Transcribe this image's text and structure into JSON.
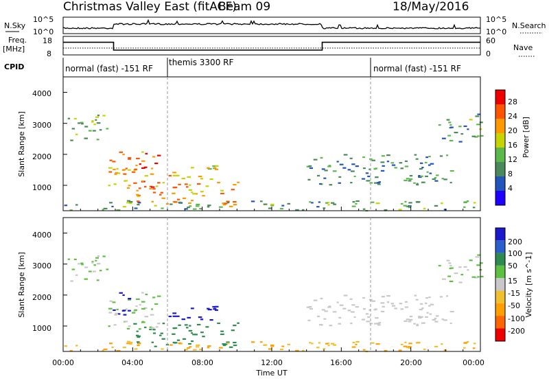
{
  "header": {
    "radar_title": "Christmas Valley East (fitACF)",
    "beam": "Beam 09",
    "date": "18/May/2016"
  },
  "nsky_panel": {
    "left_label": "N.Sky",
    "left_ticks": [
      "10^5",
      "10^0"
    ],
    "right_ticks": [
      "10^5",
      "10^0"
    ],
    "right_label": "N.Search"
  },
  "freq_panel": {
    "left_label_top": "Freq.",
    "left_label_bottom": "[MHz]",
    "left_ticks": [
      "18",
      "8"
    ],
    "right_ticks": [
      "60",
      "0"
    ],
    "right_label": "Nave"
  },
  "cpid": {
    "label": "CPID",
    "modes": [
      {
        "name": "normal (fast) -151 RF",
        "start_h": 0,
        "end_h": 6
      },
      {
        "name": "themis 3300 RF",
        "start_h": 6,
        "end_h": 18
      },
      {
        "name": "normal (fast) -151 RF",
        "start_h": 18,
        "end_h": 24
      }
    ]
  },
  "time_axis": {
    "label": "Time UT",
    "ticks": [
      "00:00",
      "04:00",
      "08:00",
      "12:00",
      "16:00",
      "20:00",
      "00:00"
    ]
  },
  "power_panel": {
    "ylabel": "Slant Range [km]",
    "yticks": [
      "4000",
      "3000",
      "2000",
      "1000"
    ],
    "colorbar_label": "Power [dB]",
    "colorbar_ticks": [
      "28",
      "24",
      "20",
      "16",
      "12",
      "8",
      "4"
    ],
    "colors": [
      "#1e00ff",
      "#2255bb",
      "#4a8a5a",
      "#5cb84a",
      "#c8d400",
      "#ff9900",
      "#ff5500",
      "#ee0000"
    ]
  },
  "velocity_panel": {
    "ylabel": "Slant Range [km]",
    "yticks": [
      "4000",
      "3000",
      "2000",
      "1000"
    ],
    "colorbar_label": "Velocity [m s^-1]",
    "colorbar_ticks": [
      "200",
      "100",
      "50",
      "15",
      "-15",
      "-50",
      "-100",
      "-200"
    ],
    "colors": [
      "#1a1acc",
      "#2a5fcc",
      "#2f8a50",
      "#5dc040",
      "#c8c8c8",
      "#f0c030",
      "#ffa000",
      "#ff6600",
      "#ee0000"
    ]
  },
  "chart_data": {
    "type": "heatmap",
    "x_range_hours": [
      0,
      24
    ],
    "y_range_km": [
      180,
      4500
    ],
    "frequency_mhz": {
      "x": [
        0,
        2.9,
        2.9,
        14.9,
        14.9,
        24
      ],
      "y": [
        14.8,
        14.8,
        10.6,
        10.6,
        14.8,
        14.8
      ]
    },
    "scatter_regions": [
      {
        "name": "",
        "t": [
          0.2,
          2.5
        ],
        "range_km": [
          2400,
          3300
        ],
        "power_db": 14,
        "velocity": 15
      },
      {
        "name": "",
        "t": [
          2.5,
          5.5
        ],
        "range_km": [
          900,
          2100
        ],
        "power_db": 24,
        "velocity": 15
      },
      {
        "name": "",
        "t": [
          2.8,
          3.8
        ],
        "range_km": [
          1300,
          2100
        ],
        "power_db": 22,
        "velocity": 220
      },
      {
        "name": "",
        "t": [
          6.0,
          9.0
        ],
        "range_km": [
          1200,
          1700
        ],
        "power_db": 20,
        "velocity": 200
      },
      {
        "name": "",
        "t": [
          4.0,
          10.0
        ],
        "range_km": [
          300,
          1100
        ],
        "power_db": 22,
        "velocity": 60
      },
      {
        "name": "",
        "t": [
          0.0,
          24.0
        ],
        "range_km": [
          180,
          500
        ],
        "power_db": 12,
        "velocity": -30
      },
      {
        "name": "",
        "t": [
          14.0,
          22.5
        ],
        "range_km": [
          1000,
          2000
        ],
        "power_db": 10,
        "velocity": 0
      },
      {
        "name": "",
        "t": [
          21.5,
          24.0
        ],
        "range_km": [
          2400,
          3300
        ],
        "power_db": 12,
        "velocity": 15
      }
    ]
  }
}
